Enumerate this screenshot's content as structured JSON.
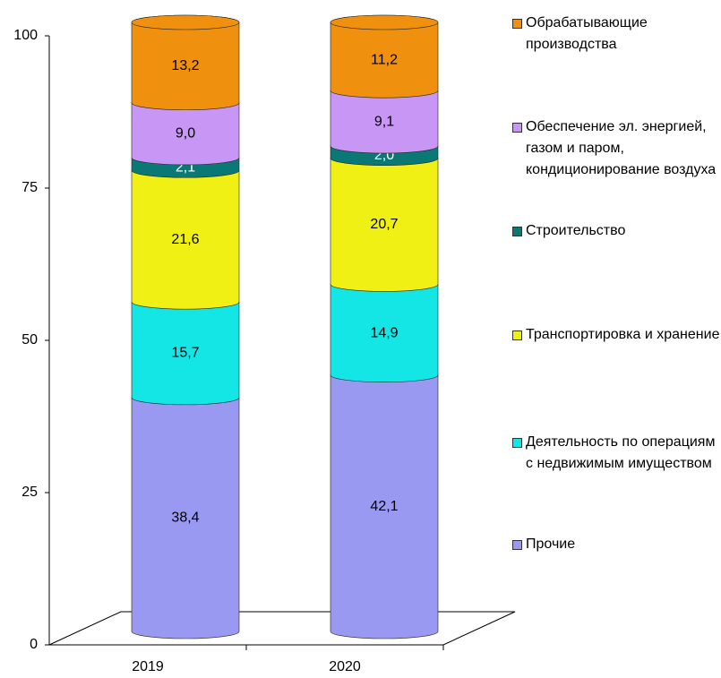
{
  "chart_data": {
    "type": "bar",
    "stacked": true,
    "categories": [
      "2019",
      "2020"
    ],
    "series": [
      {
        "name": "Прочие",
        "color": "#9999f2",
        "values": [
          38.4,
          42.1
        ],
        "value_labels": [
          "38,4",
          "42,1"
        ]
      },
      {
        "name": "Деятельность по операциям с недвижимым имуществом",
        "color": "#14e6e6",
        "values": [
          15.7,
          14.9
        ],
        "value_labels": [
          "15,7",
          "14,9"
        ]
      },
      {
        "name": "Транспортировка и хранение",
        "color": "#f0f014",
        "values": [
          21.6,
          20.7
        ],
        "value_labels": [
          "21,6",
          "20,7"
        ]
      },
      {
        "name": "Строительство",
        "color": "#0a7874",
        "values": [
          2.1,
          2.0
        ],
        "value_labels": [
          "2,1",
          "2,0"
        ]
      },
      {
        "name": "Обеспечение эл. энергией, газом и паром, кондиционирование воздуха",
        "color": "#c896f5",
        "values": [
          9.0,
          9.1
        ],
        "value_labels": [
          "9,0",
          "9,1"
        ]
      },
      {
        "name": "Обрабатывающие производства",
        "color": "#f0900f",
        "values": [
          13.2,
          11.2
        ],
        "value_labels": [
          "13,2",
          "11,2"
        ]
      }
    ],
    "ylim": [
      0,
      100
    ],
    "yticks": [
      0,
      25,
      50,
      75,
      100
    ],
    "legend": "right"
  }
}
